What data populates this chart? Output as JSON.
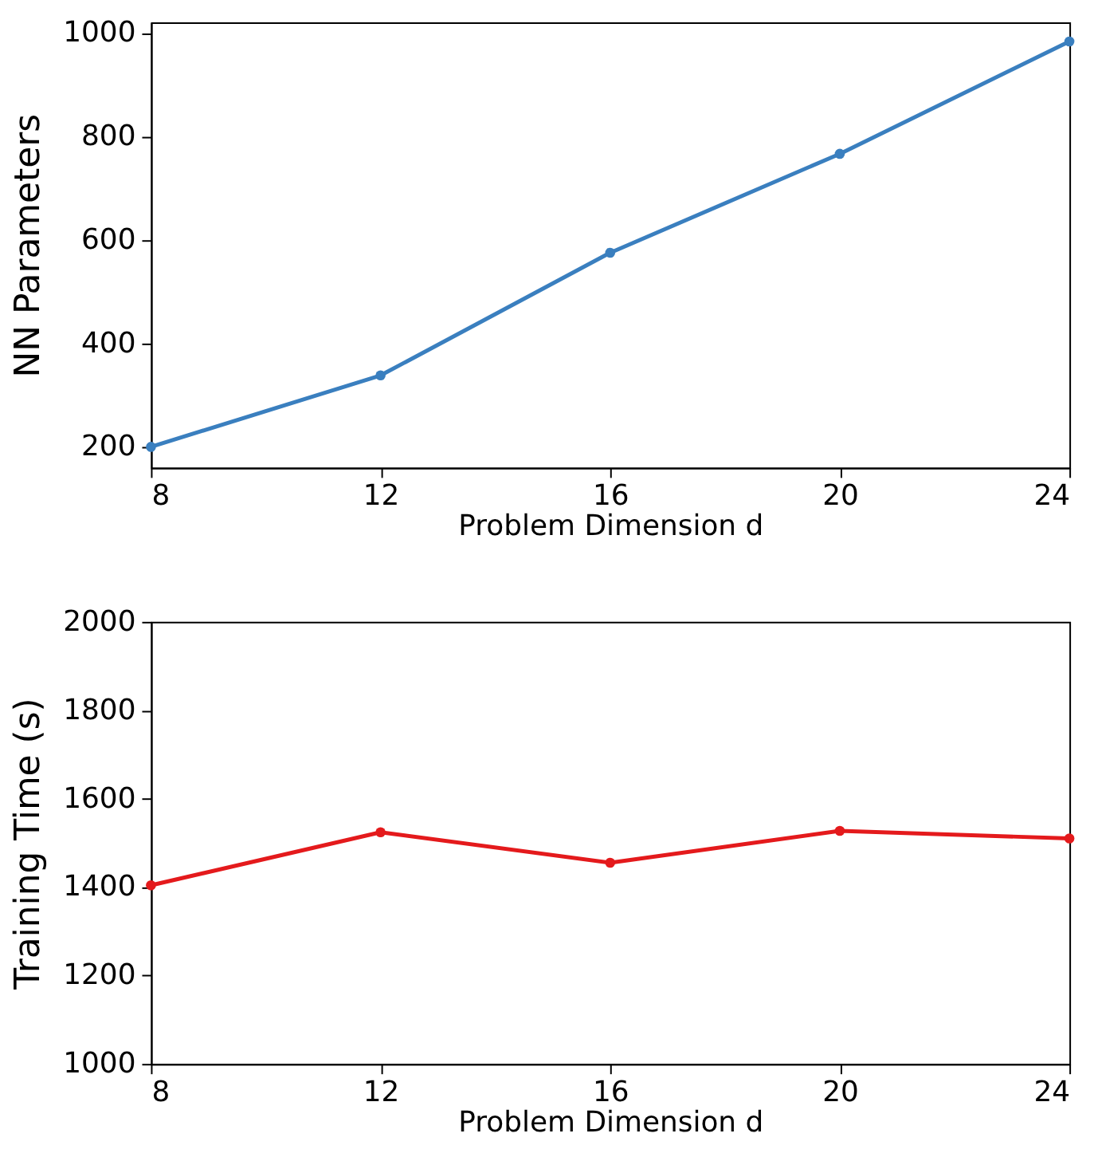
{
  "chart_data": [
    {
      "type": "line",
      "xlabel": "Problem Dimension d",
      "ylabel": "NN Parameters",
      "x": [
        8,
        12,
        16,
        20,
        24
      ],
      "xlim": [
        8,
        24
      ],
      "xticks": [
        8,
        12,
        16,
        20,
        24
      ],
      "ylim": [
        160,
        1020
      ],
      "yticks": [
        200,
        400,
        600,
        800,
        1000
      ],
      "marker": "circle",
      "line_style": "solid",
      "grid": false,
      "series": [
        {
          "color": "#3a7fbf",
          "values": [
            200,
            338,
            575,
            766,
            983
          ]
        }
      ]
    },
    {
      "type": "line",
      "xlabel": "Problem Dimension d",
      "ylabel": "Training Time (s)",
      "x": [
        8,
        12,
        16,
        20,
        24
      ],
      "xlim": [
        8,
        24
      ],
      "xticks": [
        8,
        12,
        16,
        20,
        24
      ],
      "ylim": [
        1000,
        2000
      ],
      "yticks": [
        1000,
        1200,
        1400,
        1600,
        1800,
        2000
      ],
      "marker": "circle",
      "line_style": "solid",
      "grid": false,
      "series": [
        {
          "color": "#e41a1c",
          "values": [
            1404,
            1524,
            1455,
            1527,
            1510
          ]
        }
      ]
    }
  ]
}
